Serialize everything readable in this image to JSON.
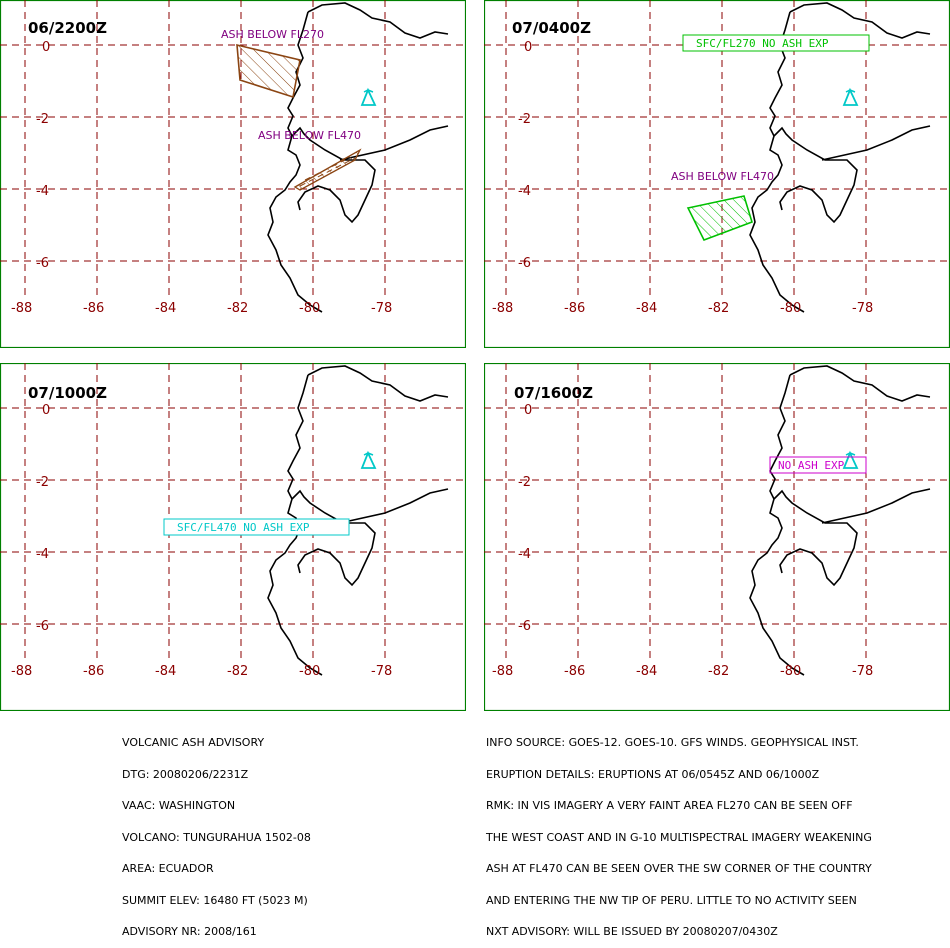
{
  "panels": [
    {
      "time": "06/2200Z",
      "lon_ticks": [
        "-88",
        "-86",
        "-84",
        "-82",
        "-80",
        "-78"
      ],
      "lat_ticks": [
        "0",
        "-2",
        "-4",
        "-6"
      ],
      "labels": [
        "ASH BELOW FL270",
        "ASH BELOW FL470"
      ],
      "label_color": "#800080",
      "ash_color": "#8b4513"
    },
    {
      "time": "07/0400Z",
      "lon_ticks": [
        "-88",
        "-86",
        "-84",
        "-82",
        "-80",
        "-78"
      ],
      "lat_ticks": [
        "0",
        "-2",
        "-4",
        "-6"
      ],
      "box_label": "SFC/FL270 NO ASH EXP",
      "labels": [
        "ASH BELOW FL470"
      ],
      "label_color": "#800080",
      "ash_color": "#00c000"
    },
    {
      "time": "07/1000Z",
      "lon_ticks": [
        "-88",
        "-86",
        "-84",
        "-82",
        "-80",
        "-78"
      ],
      "lat_ticks": [
        "0",
        "-2",
        "-4",
        "-6"
      ],
      "box_label": "SFC/FL470 NO ASH EXP",
      "box_color": "#00c8c8"
    },
    {
      "time": "07/1600Z",
      "lon_ticks": [
        "-88",
        "-86",
        "-84",
        "-82",
        "-80",
        "-78"
      ],
      "lat_ticks": [
        "0",
        "-2",
        "-4",
        "-6"
      ],
      "box_label": "NO ASH EXP",
      "box_color": "#cc00cc"
    }
  ],
  "volcano_symbol_color": "#00c8c8",
  "advisory": [
    "VOLCANIC ASH ADVISORY",
    "DTG: 20080206/2231Z",
    "VAAC: WASHINGTON",
    "VOLCANO: TUNGURAHUA 1502-08",
    "AREA: ECUADOR",
    "SUMMIT ELEV: 16480 FT (5023 M)",
    "ADVISORY NR: 2008/161"
  ],
  "info": [
    "INFO SOURCE: GOES-12. GOES-10. GFS WINDS. GEOPHYSICAL INST.",
    "ERUPTION DETAILS: ERUPTIONS AT 06/0545Z AND 06/1000Z",
    "RMK: IN VIS IMAGERY A VERY FAINT AREA FL270 CAN BE SEEN OFF",
    "THE WEST COAST AND IN G-10 MULTISPECTRAL IMAGERY WEAKENING",
    "ASH AT FL470 CAN BE SEEN OVER THE SW CORNER OF THE COUNTRY",
    "AND ENTERING THE NW TIP OF PERU. LITTLE TO NO ACTIVITY SEEN",
    "NXT ADVISORY: WILL BE ISSUED BY 20080207/0430Z"
  ]
}
